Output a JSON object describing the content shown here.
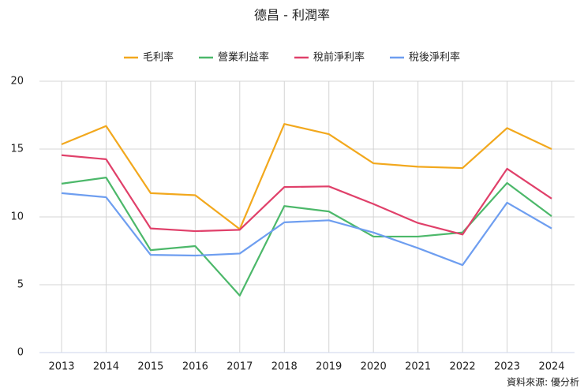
{
  "chart_data": {
    "type": "line",
    "title": "德昌 - 利潤率",
    "source": "資料來源: 優分析",
    "categories": [
      "2013",
      "2014",
      "2015",
      "2016",
      "2017",
      "2018",
      "2019",
      "2020",
      "2021",
      "2022",
      "2023",
      "2024"
    ],
    "series": [
      {
        "name": "毛利率",
        "color": "#f2a81d",
        "values": [
          15.35,
          16.7,
          11.75,
          11.6,
          9.1,
          16.85,
          16.1,
          13.95,
          13.7,
          13.6,
          16.55,
          15.0
        ]
      },
      {
        "name": "營業利益率",
        "color": "#4cb86a",
        "values": [
          12.45,
          12.9,
          7.55,
          7.85,
          4.2,
          10.8,
          10.4,
          8.55,
          8.55,
          8.85,
          12.5,
          10.05
        ]
      },
      {
        "name": "稅前淨利率",
        "color": "#e0406a",
        "values": [
          14.55,
          14.25,
          9.15,
          8.95,
          9.05,
          12.2,
          12.25,
          10.95,
          9.55,
          8.7,
          13.55,
          11.35
        ]
      },
      {
        "name": "稅後淨利率",
        "color": "#6e9ef0",
        "values": [
          11.75,
          11.45,
          7.2,
          7.15,
          7.3,
          9.6,
          9.75,
          8.85,
          7.7,
          6.45,
          11.05,
          9.15
        ]
      }
    ],
    "ylim": [
      0,
      20
    ],
    "yticks": [
      0,
      5,
      10,
      15,
      20
    ],
    "grid": true,
    "legend": "top"
  }
}
